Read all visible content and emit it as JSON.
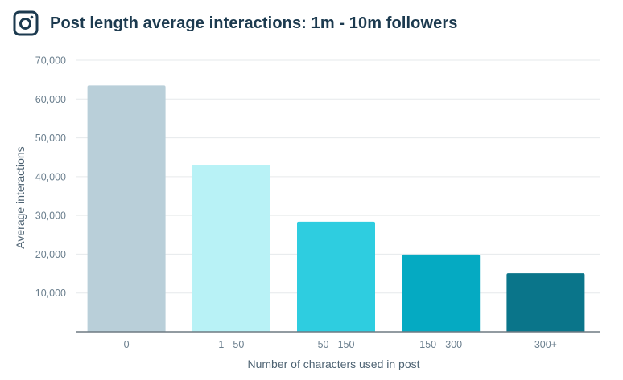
{
  "header": {
    "icon": "instagram-icon",
    "title": "Post length average interactions: 1m - 10m followers"
  },
  "chart_data": {
    "type": "bar",
    "title": "Post length average interactions: 1m - 10m followers",
    "xlabel": "Number of characters used in post",
    "ylabel": "Average interactions",
    "categories": [
      "0",
      "1 - 50",
      "50 - 150",
      "150 - 300",
      "300+"
    ],
    "values": [
      63500,
      43000,
      28400,
      19900,
      15100
    ],
    "colors": [
      "#b9cfd9",
      "#b8f2f6",
      "#2ecde0",
      "#05aac2",
      "#0a758a"
    ],
    "ylim": [
      0,
      70000
    ],
    "yticks": [
      10000,
      20000,
      30000,
      40000,
      50000,
      60000,
      70000
    ],
    "ytick_labels": [
      "10,000",
      "20,000",
      "30,000",
      "40,000",
      "50,000",
      "60,000",
      "70,000"
    ],
    "grid": true,
    "legend": "none"
  }
}
